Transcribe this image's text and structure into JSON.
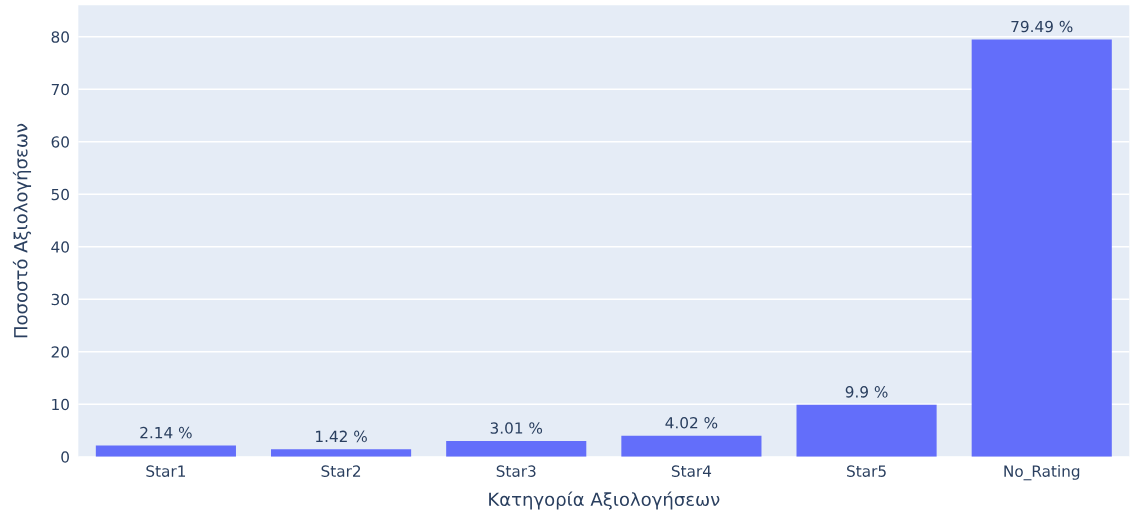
{
  "chart_data": {
    "type": "bar",
    "xlabel": "Κατηγορία Αξιολογήσεων",
    "ylabel": "Ποσοστό Αξιολογήσεων",
    "categories": [
      "Star1",
      "Star2",
      "Star3",
      "Star4",
      "Star5",
      "No_Rating"
    ],
    "values": [
      2.14,
      1.42,
      3.01,
      4.02,
      9.9,
      79.49
    ],
    "value_labels": [
      "2.14 %",
      "1.42 %",
      "3.01 %",
      "4.02 %",
      "9.9 %",
      "79.49 %"
    ],
    "color": "#636efa",
    "ylim": [
      0,
      86
    ],
    "yticks": [
      0,
      10,
      20,
      30,
      40,
      50,
      60,
      70,
      80
    ],
    "grid": "y"
  }
}
